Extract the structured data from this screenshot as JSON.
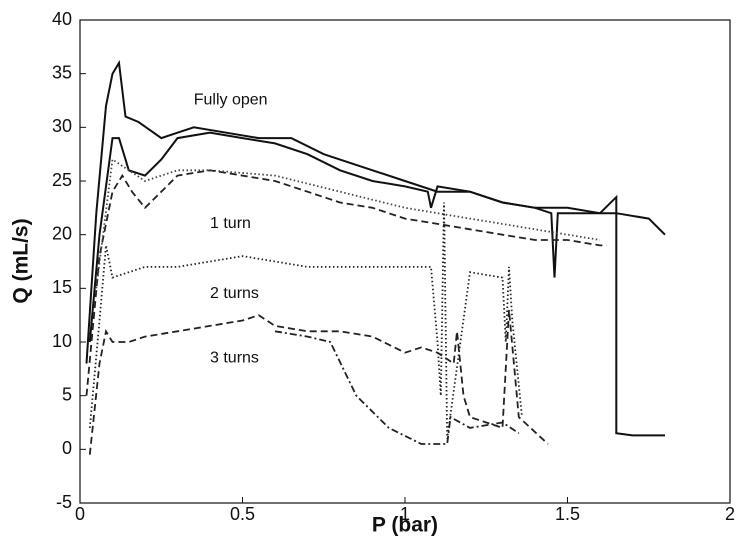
{
  "chart_data": {
    "type": "line",
    "xlabel": "P (bar)",
    "ylabel": "Q (mL/s)",
    "xlim": [
      0,
      2
    ],
    "xticks": [
      0,
      0.5,
      1,
      1.5,
      2
    ],
    "ylim": [
      -5,
      40
    ],
    "yticks": [
      -5,
      0,
      5,
      10,
      15,
      20,
      25,
      30,
      35,
      40
    ],
    "grid": false,
    "series": [
      {
        "name": "Fully open",
        "color": "#111111",
        "style": "solid",
        "x": [
          0.02,
          0.05,
          0.08,
          0.1,
          0.12,
          0.14,
          0.18,
          0.25,
          0.3,
          0.35,
          0.45,
          0.55,
          0.65,
          0.75,
          0.9,
          1.0,
          1.1,
          1.2,
          1.3,
          1.4,
          1.5,
          1.6,
          1.65,
          1.65,
          1.7,
          1.8
        ],
        "values": [
          8,
          22,
          32,
          35,
          36,
          31,
          30.5,
          29,
          29.5,
          30,
          29.5,
          29,
          29,
          27.5,
          26,
          25,
          24,
          24,
          23,
          22.5,
          22.5,
          22,
          23.5,
          1.5,
          1.3,
          1.3
        ]
      },
      {
        "color": "#111111",
        "style": "solid",
        "x": [
          0.03,
          0.06,
          0.1,
          0.12,
          0.15,
          0.2,
          0.25,
          0.3,
          0.4,
          0.5,
          0.6,
          0.7,
          0.8,
          0.9,
          1.0,
          1.07,
          1.08,
          1.1,
          1.2,
          1.3,
          1.4,
          1.45,
          1.46,
          1.47,
          1.55,
          1.65,
          1.75,
          1.8
        ],
        "values": [
          10,
          20,
          29,
          29,
          26,
          25.5,
          27,
          29,
          29.5,
          29,
          28.5,
          27.5,
          26,
          25,
          24.5,
          24,
          22.5,
          24.5,
          24,
          23,
          22.5,
          22,
          16,
          22,
          22,
          22,
          21.5,
          20
        ]
      },
      {
        "name": "1 turn",
        "color": "#222222",
        "style": "dashed",
        "x": [
          0.02,
          0.06,
          0.1,
          0.13,
          0.16,
          0.2,
          0.25,
          0.3,
          0.4,
          0.5,
          0.6,
          0.7,
          0.8,
          0.9,
          1.0,
          1.1,
          1.2,
          1.3,
          1.4,
          1.5,
          1.6,
          1.62
        ],
        "values": [
          5,
          18,
          24,
          25.5,
          24,
          22.5,
          24,
          25.5,
          26,
          25.5,
          25,
          24,
          23,
          22.5,
          21.5,
          21,
          20.5,
          20,
          19.5,
          19.5,
          19,
          19
        ]
      },
      {
        "color": "#444444",
        "style": "dotted",
        "x": [
          0.05,
          0.1,
          0.15,
          0.2,
          0.3,
          0.4,
          0.6,
          0.8,
          1.0,
          1.2,
          1.4,
          1.6
        ],
        "values": [
          15,
          27,
          26,
          25,
          26,
          26,
          25.5,
          24,
          22.5,
          21.5,
          20.5,
          19.5
        ]
      },
      {
        "name": "2 turns",
        "color": "#222222",
        "style": "dotted",
        "x": [
          0.03,
          0.06,
          0.08,
          0.1,
          0.15,
          0.2,
          0.3,
          0.4,
          0.5,
          0.6,
          0.7,
          0.8,
          0.9,
          1.0,
          1.08,
          1.1,
          1.11,
          1.12,
          1.13,
          1.2,
          1.3,
          1.31,
          1.32,
          1.33,
          1.36
        ],
        "values": [
          2,
          12,
          19,
          16,
          16.5,
          17,
          17,
          17.5,
          18,
          17.5,
          17,
          17,
          17,
          17,
          17,
          10,
          5,
          23,
          1,
          16.5,
          16,
          10,
          17,
          12,
          3
        ]
      },
      {
        "name": "3 turns",
        "color": "#222222",
        "style": "dashed",
        "x": [
          0.03,
          0.06,
          0.08,
          0.1,
          0.15,
          0.2,
          0.3,
          0.4,
          0.5,
          0.55,
          0.6,
          0.7,
          0.8,
          0.9,
          1.0,
          1.05,
          1.1,
          1.15,
          1.16,
          1.18,
          1.2,
          1.25,
          1.3,
          1.32,
          1.35,
          1.44
        ],
        "values": [
          -0.5,
          8,
          11,
          10,
          10,
          10.5,
          11,
          11.5,
          12,
          12.5,
          11.5,
          11,
          11,
          10.5,
          9,
          9.5,
          9,
          8,
          11,
          5,
          3,
          2.5,
          2,
          13,
          3,
          0.5
        ]
      },
      {
        "color": "#222222",
        "style": "dashdot",
        "x": [
          0.6,
          0.7,
          0.77,
          0.85,
          0.95,
          1.05,
          1.13,
          1.14,
          1.2,
          1.3,
          1.35
        ],
        "values": [
          11,
          10.5,
          10,
          5,
          2,
          0.5,
          0.5,
          3,
          2,
          2.5,
          1.5
        ]
      }
    ]
  }
}
